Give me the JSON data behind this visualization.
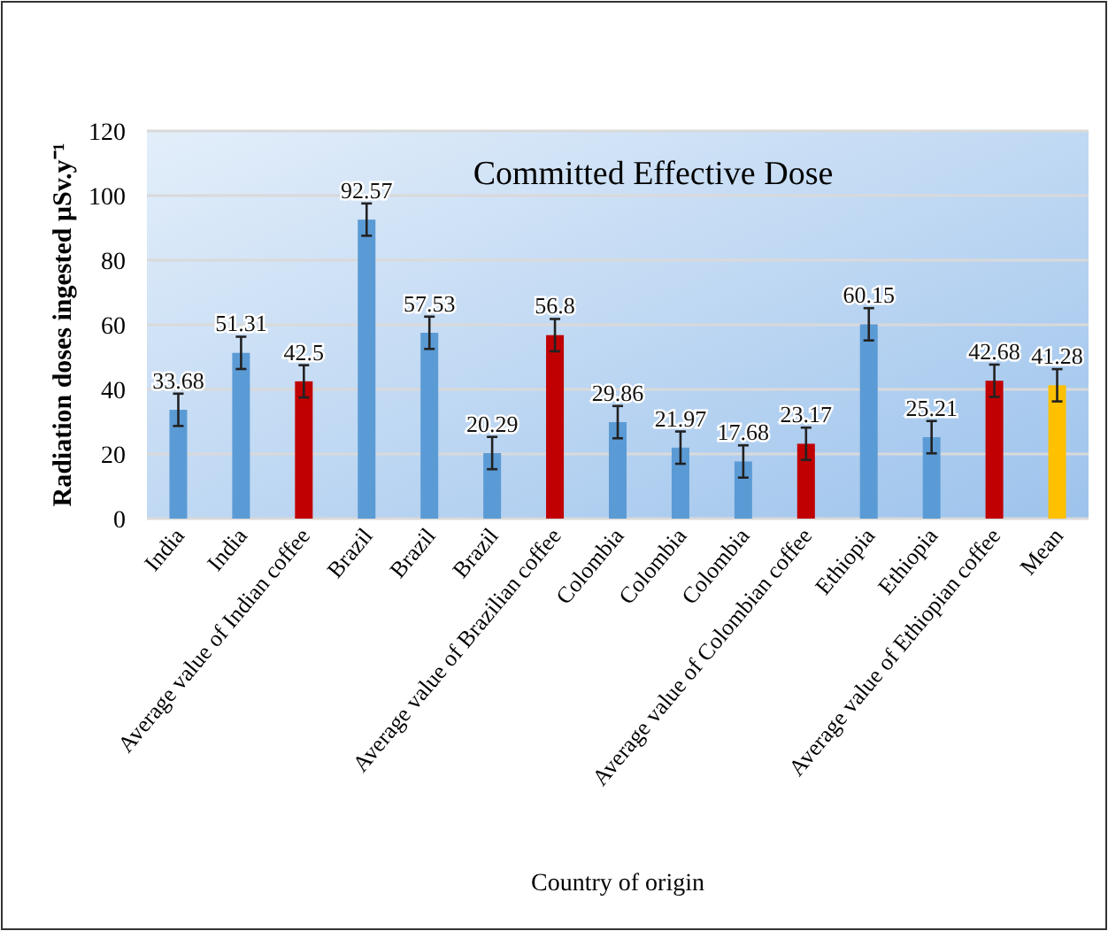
{
  "chart_data": {
    "type": "bar",
    "title": "Committed Effective Dose",
    "xlabel": "Country of origin",
    "ylabel": "Radiation doses ingested μSv.y⁻¹",
    "categories": [
      "India",
      "India",
      "Average value of Indian coffee",
      "Brazil",
      "Brazil",
      "Brazil",
      "Average value of Brazilian coffee",
      "Colombia",
      "Colombia",
      "Colombia",
      "Average value of Colombian coffee",
      "Ethiopia",
      "Ethiopia",
      "Average value of Ethiopian coffee",
      "Mean"
    ],
    "values": [
      33.68,
      51.31,
      42.5,
      92.57,
      57.53,
      20.29,
      56.8,
      29.86,
      21.97,
      17.68,
      23.17,
      60.15,
      25.21,
      42.68,
      41.28
    ],
    "errors": [
      5,
      5,
      5,
      5,
      5,
      5,
      5,
      5,
      5,
      5,
      5,
      5,
      5,
      5,
      5
    ],
    "colors": [
      "#5b9bd5",
      "#5b9bd5",
      "#c00000",
      "#5b9bd5",
      "#5b9bd5",
      "#5b9bd5",
      "#c00000",
      "#5b9bd5",
      "#5b9bd5",
      "#5b9bd5",
      "#c00000",
      "#5b9bd5",
      "#5b9bd5",
      "#c00000",
      "#ffc000"
    ],
    "data_labels": true,
    "ylim": [
      0,
      120
    ],
    "yticks": [
      0,
      20,
      40,
      60,
      80,
      100,
      120
    ],
    "grid": "y"
  }
}
